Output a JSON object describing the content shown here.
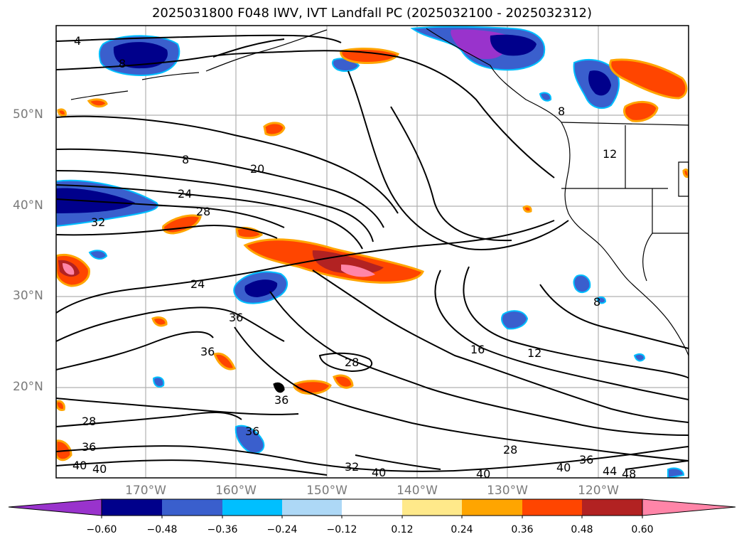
{
  "title": "2025031800 F048 IWV, IVT Landfall PC (2025032100 - 2025032312)",
  "axes": {
    "latitude_labels": [
      "50°N",
      "40°N",
      "30°N",
      "20°N"
    ],
    "longitude_labels": [
      "170°W",
      "160°W",
      "150°W",
      "140°W",
      "130°W",
      "120°W"
    ]
  },
  "contours": {
    "variable": "IWV",
    "labels": [
      "4",
      "8",
      "8",
      "8",
      "8",
      "12",
      "12",
      "16",
      "20",
      "24",
      "24",
      "28",
      "28",
      "28",
      "28",
      "32",
      "32",
      "36",
      "36",
      "36",
      "36",
      "36",
      "36",
      "40",
      "40",
      "40",
      "40",
      "40",
      "44",
      "48"
    ]
  },
  "colorbar": {
    "tick_labels": [
      "−0.60",
      "−0.48",
      "−0.36",
      "−0.24",
      "−0.12",
      "0.12",
      "0.24",
      "0.36",
      "0.48",
      "0.60"
    ],
    "colors": [
      "#9933cc",
      "#00008b",
      "#3a5fcd",
      "#00bfff",
      "#add8f6",
      "#ffffff",
      "#ffe98a",
      "#ffa500",
      "#ff4500",
      "#b22222",
      "#ff85a8",
      "#ff85a8"
    ]
  }
}
